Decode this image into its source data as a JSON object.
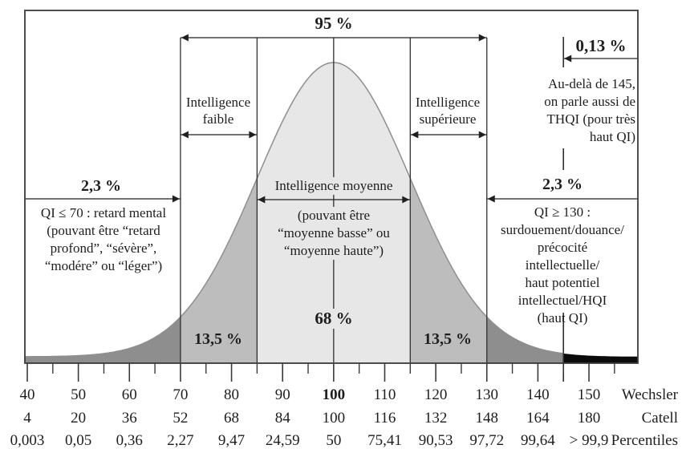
{
  "figure": {
    "background": "#ffffff",
    "text_color": "#1e1e1e",
    "border_color": "#3a3a3a"
  },
  "chart_data": {
    "type": "area",
    "subject": "Courbe de distribution normale du QI",
    "distribution": {
      "mean_wechsler": 100,
      "sd_wechsler": 15,
      "axis_min": 40,
      "axis_max": 150
    },
    "boundaries_wechsler": [
      70,
      85,
      100,
      115,
      130,
      145
    ],
    "guide_lines_wechsler": [
      70,
      85,
      100,
      115,
      130
    ],
    "curve_stroke": "#8f8f8f",
    "regions": [
      {
        "range_wechsler": "< 70",
        "share": "2,3 %",
        "fill": "#8e8e8e"
      },
      {
        "range_wechsler": "70-85",
        "share": "13,5 %",
        "fill": "#bdbdbd"
      },
      {
        "range_wechsler": "85-115",
        "share": "68 %",
        "fill": "#e7e7e7"
      },
      {
        "range_wechsler": "115-130",
        "share": "13,5 %",
        "fill": "#bdbdbd"
      },
      {
        "range_wechsler": "130-145",
        "share": "2,3 %",
        "fill": "#8e8e8e"
      },
      {
        "range_wechsler": "> 145",
        "share": "0,13 %",
        "fill": "#0b0b0b"
      }
    ],
    "axis_rows": [
      {
        "label": "Wechsler",
        "bold_value": "100",
        "values": [
          "40",
          "50",
          "60",
          "70",
          "80",
          "90",
          "100",
          "110",
          "120",
          "130",
          "140",
          "150"
        ]
      },
      {
        "label": "Catell",
        "bold_value": "",
        "values": [
          "4",
          "20",
          "36",
          "52",
          "68",
          "84",
          "100",
          "116",
          "132",
          "148",
          "164",
          "180"
        ]
      },
      {
        "label": "Percentiles",
        "bold_value": "",
        "values": [
          "0,003",
          "0,05",
          "0,36",
          "2,27",
          "9,47",
          "24,59",
          "50",
          "75,41",
          "90,53",
          "97,72",
          "99,64",
          "> 99,9"
        ]
      }
    ]
  },
  "annotations": {
    "pct_95": "95 %",
    "pct_013": "0,13 %",
    "pct_23_left": "2,3 %",
    "pct_23_right": "2,3 %",
    "pct_68": "68 %",
    "pct_135_left": "13,5 %",
    "pct_135_right": "13,5 %",
    "intelligence_faible": "Intelligence\nfaible",
    "intelligence_superieure": "Intelligence\nsupérieure",
    "intelligence_moyenne": "Intelligence moyenne",
    "moyenne_detail": "(pouvant être\n“moyenne basse” ou\n“moyenne haute”)",
    "low_iq_note": "QI ≤ 70 : retard mental\n(pouvant être “retard\nprofond”, “sévère”,\n“modére” ou “léger”)",
    "high_iq_note": "QI ≥ 130 :\nsurdouement/douance/\nprécocité intellectuelle/\nhaut potentiel\nintellectuel/HQI\n(haut QI)",
    "thqi_note": "Au-delà de 145,\non parle aussi de\nTHQI (pour très\nhaut QI)"
  }
}
